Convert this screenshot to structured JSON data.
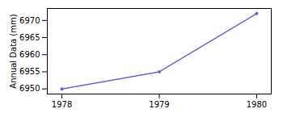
{
  "chart_data": {
    "type": "line",
    "x": [
      1978,
      1979,
      1980
    ],
    "values": [
      6950,
      6955,
      6972
    ],
    "color": "#6666cc",
    "marker": "point",
    "ylabel": "Annual Data (mm)",
    "xlim": [
      1977.85,
      1980.15
    ],
    "xticks": [
      1978,
      1979,
      1980
    ],
    "ylim": [
      6948.5,
      6973.5
    ],
    "yticks": [
      6950,
      6955,
      6960,
      6965,
      6970
    ]
  }
}
